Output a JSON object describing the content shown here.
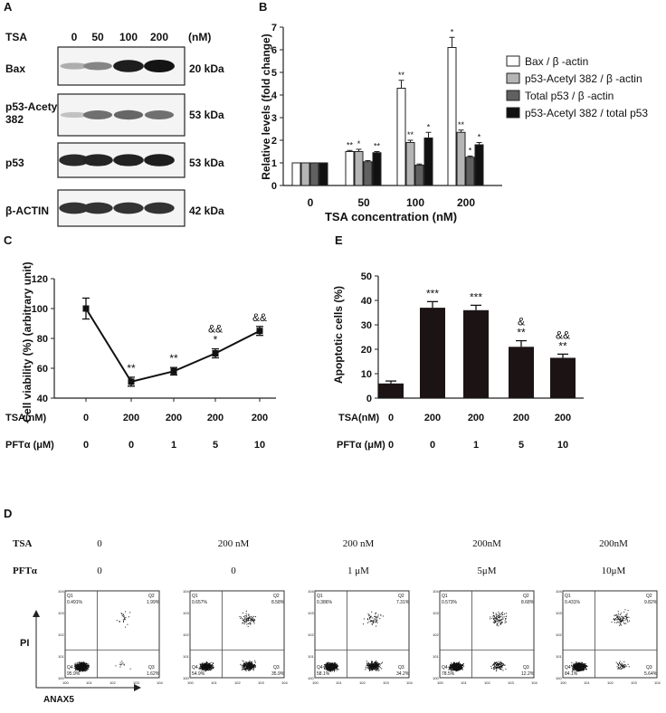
{
  "panel_a": {
    "letter": "A",
    "tsa_label": "TSA",
    "doses": [
      "0",
      "50",
      "100",
      "200"
    ],
    "unit": "(nM)",
    "blots": [
      {
        "protein": "Bax",
        "size": "20 kDa",
        "intensity": [
          0.25,
          0.45,
          0.95,
          1.0
        ]
      },
      {
        "protein": "p53-Acetyl 382",
        "size": "53 kDa",
        "intensity": [
          0.15,
          0.55,
          0.6,
          0.55
        ]
      },
      {
        "protein": "p53",
        "size": "53 kDa",
        "intensity": [
          0.9,
          0.92,
          0.93,
          0.95
        ]
      },
      {
        "protein": "β-ACTIN",
        "size": "42 kDa",
        "intensity": [
          0.85,
          0.85,
          0.85,
          0.85
        ]
      }
    ]
  },
  "panel_d": {
    "letter": "D",
    "row_labels": [
      "TSA",
      "PFTα"
    ],
    "tsa": [
      "0",
      "200 nM",
      "200 nM",
      "200nM",
      "200nM"
    ],
    "pft": [
      "0",
      "0",
      "1 μM",
      "5μM",
      "10μM"
    ],
    "y_axis": "PI",
    "x_axis": "ANAX5",
    "quadrants": [
      {
        "q1": "0.491%",
        "q2": "1.99%",
        "q3": "1.62%",
        "q4": "95.9%"
      },
      {
        "q1": "0.657%",
        "q2": "8.58%",
        "q3": "35.9%",
        "q4": "54.9%"
      },
      {
        "q1": "0.386%",
        "q2": "7.31%",
        "q3": "34.2%",
        "q4": "58.1%"
      },
      {
        "q1": "0.573%",
        "q2": "8.68%",
        "q3": "12.2%",
        "q4": "78.5%"
      },
      {
        "q1": "0.431%",
        "q2": "9.82%",
        "q3": "5.64%",
        "q4": "84.1%"
      }
    ]
  },
  "chart_data": [
    {
      "panel": "B",
      "type": "bar",
      "categories": [
        "0",
        "50",
        "100",
        "200"
      ],
      "xlabel": "TSA concentration (nM)",
      "ylabel": "Relative levels (fold change)",
      "ylim": [
        0,
        7
      ],
      "yticks": [
        "0",
        "1",
        "2",
        "3",
        "4",
        "5",
        "6",
        "7"
      ],
      "legend_position": "right",
      "series": [
        {
          "name": "Bax / β -actin",
          "color": "#ffffff",
          "values": [
            1.0,
            1.5,
            4.3,
            6.1
          ],
          "errors": [
            0,
            0.05,
            0.35,
            0.45
          ],
          "sig": [
            "",
            "**",
            "**",
            "*"
          ]
        },
        {
          "name": "p53-Acetyl 382 / β -actin",
          "color": "#b5b5b5",
          "values": [
            1.0,
            1.5,
            1.9,
            2.35
          ],
          "errors": [
            0,
            0.1,
            0.1,
            0.1
          ],
          "sig": [
            "",
            "*",
            "**",
            "**"
          ]
        },
        {
          "name": "Total p53 / β -actin",
          "color": "#606060",
          "values": [
            1.0,
            1.05,
            0.9,
            1.25
          ],
          "errors": [
            0,
            0.05,
            0.05,
            0.05
          ],
          "sig": [
            "",
            "",
            "",
            "*"
          ]
        },
        {
          "name": "p53-Acetyl 382 / total p53",
          "color": "#111111",
          "values": [
            1.0,
            1.45,
            2.1,
            1.8
          ],
          "errors": [
            0,
            0.05,
            0.25,
            0.1
          ],
          "sig": [
            "",
            "**",
            "*",
            "*"
          ]
        }
      ]
    },
    {
      "panel": "C",
      "type": "line",
      "ylabel": "Cell viability (%) (arbitrary unit)",
      "ylim": [
        40,
        120
      ],
      "yticks": [
        "40",
        "60",
        "80",
        "100",
        "120"
      ],
      "row_labels": [
        "TSA(nM)",
        "PFTα (μM)"
      ],
      "tsa": [
        "0",
        "200",
        "200",
        "200",
        "200"
      ],
      "pft": [
        "0",
        "0",
        "1",
        "5",
        "10"
      ],
      "values": [
        100,
        51,
        58,
        70,
        85
      ],
      "errors": [
        7,
        3,
        2.5,
        3,
        3
      ],
      "sig": [
        [],
        [
          "**"
        ],
        [
          "**"
        ],
        [
          "&&",
          "*"
        ],
        [
          "&&"
        ]
      ]
    },
    {
      "panel": "E",
      "type": "bar",
      "ylabel": "Apoptotic cells (%)",
      "ylim": [
        0,
        50
      ],
      "yticks": [
        "0",
        "10",
        "20",
        "30",
        "40",
        "50"
      ],
      "row_labels": [
        "TSA(nM)",
        "PFTα (μM)"
      ],
      "tsa": [
        "0",
        "200",
        "200",
        "200",
        "200"
      ],
      "pft": [
        "0",
        "0",
        "1",
        "5",
        "10"
      ],
      "values": [
        6,
        37,
        36,
        21,
        16.5
      ],
      "errors": [
        1,
        2.5,
        2,
        2.5,
        1.5
      ],
      "sig": [
        [],
        [
          "***"
        ],
        [
          "***"
        ],
        [
          "&",
          "**"
        ],
        [
          "&&",
          "**"
        ]
      ]
    }
  ],
  "letters": {
    "b": "B",
    "c": "C",
    "e": "E"
  }
}
